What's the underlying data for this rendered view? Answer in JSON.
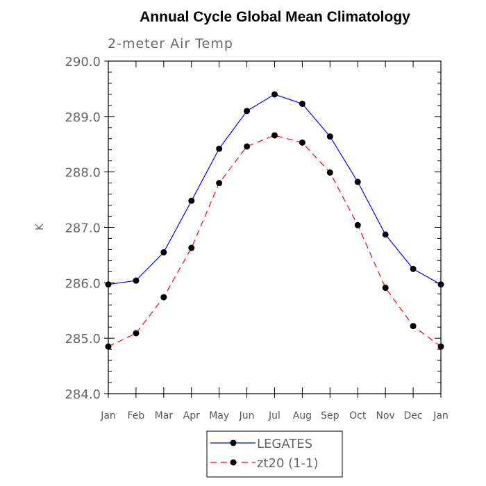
{
  "chart_data": {
    "type": "line",
    "title": "Annual Cycle Global Mean Climatology",
    "subtitle": "2-meter Air Temp",
    "xlabel": "",
    "ylabel": "K",
    "categories": [
      "Jan",
      "Feb",
      "Mar",
      "Apr",
      "May",
      "Jun",
      "Jul",
      "Aug",
      "Sep",
      "Oct",
      "Nov",
      "Dec",
      "Jan"
    ],
    "ylim": [
      284.0,
      290.0
    ],
    "yticks": [
      "284.0",
      "285.0",
      "286.0",
      "287.0",
      "288.0",
      "289.0",
      "290.0"
    ],
    "grid": false,
    "legend_position": "bottom-center",
    "series": [
      {
        "name": "LEGATES",
        "color": "#0000ff",
        "line_style": "solid",
        "values": [
          285.97,
          286.04,
          286.55,
          287.48,
          288.42,
          289.1,
          289.4,
          289.23,
          288.64,
          287.82,
          286.87,
          286.25,
          285.97
        ]
      },
      {
        "name": "zt20 (1-1)",
        "color": "#ff0000",
        "line_style": "dashed",
        "values": [
          284.85,
          285.09,
          285.74,
          286.63,
          287.8,
          288.46,
          288.66,
          288.53,
          287.99,
          287.04,
          285.91,
          285.22,
          284.85
        ]
      }
    ]
  }
}
